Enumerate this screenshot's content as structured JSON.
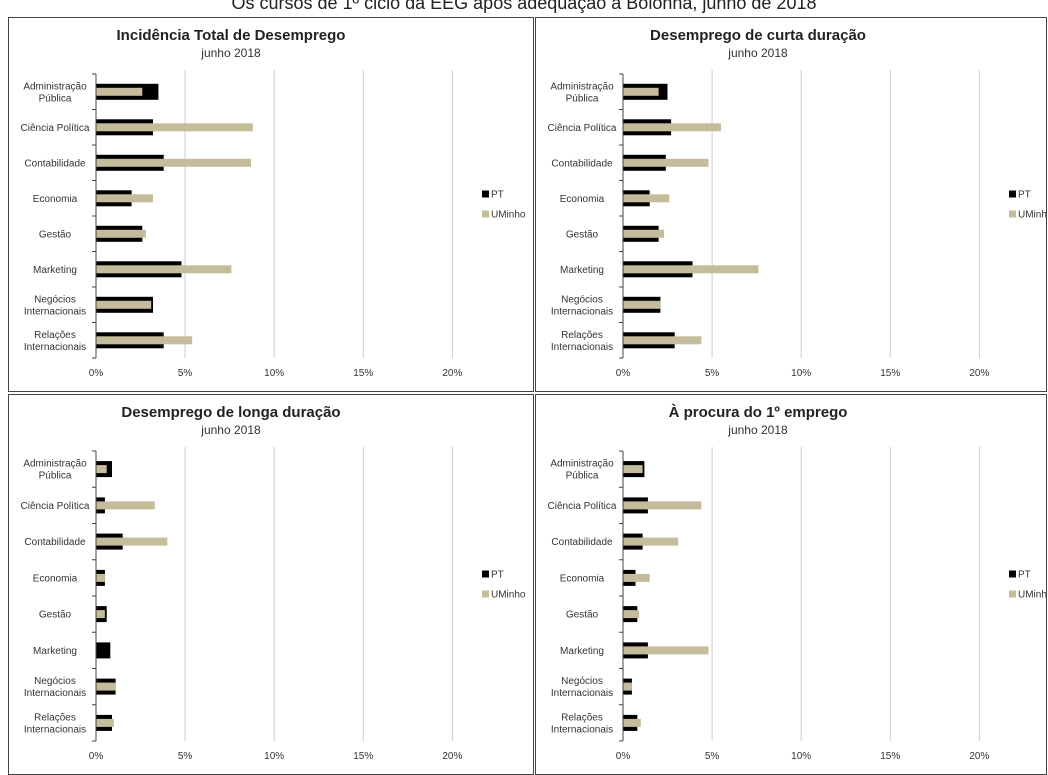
{
  "page": {
    "title": "Os cursos de 1º ciclo da EEG após adequação a Bolonha, junho de 2018"
  },
  "colors": {
    "PT": "#000000",
    "UMinho": "#c4bc9a",
    "grid": "#cccccc",
    "axis": "#444444"
  },
  "chart_data": [
    {
      "type": "bar",
      "orientation": "horizontal",
      "title": "Incidência Total de Desemprego",
      "subtitle": "junho 2018",
      "categories": [
        "Administração Pública",
        "Ciência Política",
        "Contabilidade",
        "Economia",
        "Gestão",
        "Marketing",
        "Negócios Internacionais",
        "Relações Internacionais"
      ],
      "category_lines": [
        [
          "Administração",
          "Pública"
        ],
        [
          "Ciência Política"
        ],
        [
          "Contabilidade"
        ],
        [
          "Economia"
        ],
        [
          "Gestão"
        ],
        [
          "Marketing"
        ],
        [
          "Negócios",
          "Internacionais"
        ],
        [
          "Relações",
          "Internacionais"
        ]
      ],
      "series": [
        {
          "name": "PT",
          "values": [
            3.5,
            3.2,
            3.8,
            2.0,
            2.6,
            4.8,
            3.2,
            3.8
          ]
        },
        {
          "name": "UMinho",
          "values": [
            2.6,
            8.8,
            8.7,
            3.2,
            2.8,
            7.6,
            3.1,
            5.4
          ]
        }
      ],
      "xlim": [
        0,
        22
      ],
      "xticks": [
        "0%",
        "5%",
        "10%",
        "15%",
        "20%"
      ],
      "grid": true,
      "legend": "right"
    },
    {
      "type": "bar",
      "orientation": "horizontal",
      "title": "Desemprego de curta duração",
      "subtitle": "junho 2018",
      "categories": [
        "Administração Pública",
        "Ciência Política",
        "Contabilidade",
        "Economia",
        "Gestão",
        "Marketing",
        "Negócios Internacionais",
        "Relações Internacionais"
      ],
      "category_lines": [
        [
          "Administração",
          "Pública"
        ],
        [
          "Ciência Política"
        ],
        [
          "Contabilidade"
        ],
        [
          "Economia"
        ],
        [
          "Gestão"
        ],
        [
          "Marketing"
        ],
        [
          "Negócios",
          "Internacionais"
        ],
        [
          "Relações",
          "Internacionais"
        ]
      ],
      "series": [
        {
          "name": "PT",
          "values": [
            2.5,
            2.7,
            2.4,
            1.5,
            2.0,
            3.9,
            2.1,
            2.9
          ]
        },
        {
          "name": "UMinho",
          "values": [
            2.0,
            5.5,
            4.8,
            2.6,
            2.3,
            7.6,
            2.1,
            4.4
          ]
        }
      ],
      "xlim": [
        0,
        22
      ],
      "xticks": [
        "0%",
        "5%",
        "10%",
        "15%",
        "20%"
      ],
      "grid": true,
      "legend": "right"
    },
    {
      "type": "bar",
      "orientation": "horizontal",
      "title": "Desemprego de longa duração",
      "subtitle": "junho 2018",
      "categories": [
        "Administração Pública",
        "Ciência Política",
        "Contabilidade",
        "Economia",
        "Gestão",
        "Marketing",
        "Negócios Internacionais",
        "Relações Internacionais"
      ],
      "category_lines": [
        [
          "Administração",
          "Pública"
        ],
        [
          "Ciência Política"
        ],
        [
          "Contabilidade"
        ],
        [
          "Economia"
        ],
        [
          "Gestão"
        ],
        [
          "Marketing"
        ],
        [
          "Negócios",
          "Internacionais"
        ],
        [
          "Relações",
          "Internacionais"
        ]
      ],
      "series": [
        {
          "name": "PT",
          "values": [
            0.9,
            0.5,
            1.5,
            0.5,
            0.6,
            0.8,
            1.1,
            0.9
          ]
        },
        {
          "name": "UMinho",
          "values": [
            0.6,
            3.3,
            4.0,
            0.5,
            0.5,
            0.0,
            1.1,
            1.0
          ]
        }
      ],
      "xlim": [
        0,
        22
      ],
      "xticks": [
        "0%",
        "5%",
        "10%",
        "15%",
        "20%"
      ],
      "grid": true,
      "legend": "right"
    },
    {
      "type": "bar",
      "orientation": "horizontal",
      "title": "À procura do 1º emprego",
      "subtitle": "junho 2018",
      "categories": [
        "Administração Pública",
        "Ciência Política",
        "Contabilidade",
        "Economia",
        "Gestão",
        "Marketing",
        "Negócios Internacionais",
        "Relações Internacionais"
      ],
      "category_lines": [
        [
          "Administração",
          "Pública"
        ],
        [
          "Ciência Política"
        ],
        [
          "Contabilidade"
        ],
        [
          "Economia"
        ],
        [
          "Gestão"
        ],
        [
          "Marketing"
        ],
        [
          "Negócios",
          "Internacionais"
        ],
        [
          "Relações",
          "Internacionais"
        ]
      ],
      "series": [
        {
          "name": "PT",
          "values": [
            1.2,
            1.4,
            1.1,
            0.7,
            0.8,
            1.4,
            0.5,
            0.8
          ]
        },
        {
          "name": "UMinho",
          "values": [
            1.1,
            4.4,
            3.1,
            1.5,
            0.9,
            4.8,
            0.5,
            1.0
          ]
        }
      ],
      "xlim": [
        0,
        22
      ],
      "xticks": [
        "0%",
        "5%",
        "10%",
        "15%",
        "20%"
      ],
      "grid": true,
      "legend": "right"
    }
  ]
}
